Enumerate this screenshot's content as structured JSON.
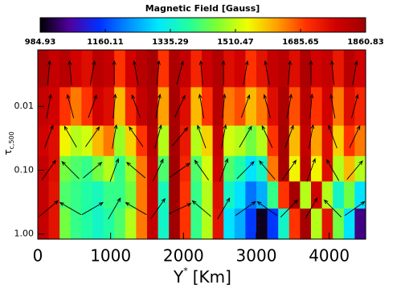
{
  "chart_data": {
    "type": "heatmap",
    "colorbar_title": "Magnetic Field [Gauss]",
    "zlim": [
      984.93,
      1860.83
    ],
    "zticks": [
      984.93,
      1160.11,
      1335.29,
      1510.47,
      1685.65,
      1860.83
    ],
    "colormap": [
      "#000000",
      "#5000a0",
      "#0030ff",
      "#0090ff",
      "#00e8ff",
      "#20ffa0",
      "#80ff30",
      "#f0ff00",
      "#ffa000",
      "#ff3000",
      "#d00000",
      "#a00000"
    ],
    "xlabel": {
      "base": "Y",
      "sup": "*",
      "unit": "[Km]"
    },
    "ylabel": {
      "symbol": "τ",
      "sub": "c,500"
    },
    "xlim": [
      0,
      4500
    ],
    "xticks": [
      0,
      1000,
      2000,
      3000,
      4000
    ],
    "ylog": true,
    "ylim": [
      1.2,
      0.0013
    ],
    "yticks": [
      0.01,
      {
        "value": 0.1,
        "label": "0.10"
      },
      {
        "value": 1,
        "label": "1.00"
      }
    ],
    "x_edges": [
      0,
      150,
      300,
      450,
      600,
      750,
      900,
      1050,
      1200,
      1350,
      1500,
      1650,
      1800,
      1950,
      2100,
      2250,
      2400,
      2550,
      2700,
      2850,
      3000,
      3150,
      3300,
      3450,
      3600,
      3750,
      3900,
      4050,
      4200,
      4350,
      4500
    ],
    "y_edges": [
      0.0013,
      0.005,
      0.02,
      0.06,
      0.15,
      0.4,
      1.2
    ],
    "z": [
      [
        1840,
        1800,
        1820,
        1780,
        1760,
        1820,
        1800,
        1700,
        1780,
        1820,
        1850,
        1700,
        1840,
        1800,
        1720,
        1790,
        1830,
        1760,
        1780,
        1700,
        1750,
        1800,
        1820,
        1760,
        1840,
        1780,
        1800,
        1740,
        1820,
        1780
      ],
      [
        1800,
        1780,
        1700,
        1650,
        1700,
        1780,
        1760,
        1600,
        1720,
        1800,
        1840,
        1620,
        1850,
        1760,
        1600,
        1700,
        1820,
        1650,
        1680,
        1600,
        1650,
        1760,
        1840,
        1680,
        1820,
        1700,
        1780,
        1650,
        1760,
        1720
      ],
      [
        1780,
        1760,
        1550,
        1500,
        1520,
        1600,
        1650,
        1480,
        1580,
        1700,
        1820,
        1500,
        1850,
        1740,
        1500,
        1580,
        1800,
        1520,
        1500,
        1450,
        1500,
        1700,
        1850,
        1600,
        1800,
        1620,
        1760,
        1580,
        1700,
        1650
      ],
      [
        1800,
        1760,
        1450,
        1420,
        1400,
        1450,
        1500,
        1400,
        1480,
        1650,
        1800,
        1420,
        1860,
        1720,
        1420,
        1520,
        1780,
        1420,
        1380,
        1300,
        1350,
        1650,
        1850,
        1550,
        1820,
        1550,
        1760,
        1500,
        1600,
        1500
      ],
      [
        1800,
        1750,
        1420,
        1400,
        1380,
        1360,
        1400,
        1400,
        1450,
        1650,
        1800,
        1360,
        1860,
        1700,
        1400,
        1500,
        1760,
        1350,
        1300,
        1200,
        1250,
        1400,
        1700,
        1850,
        1500,
        1780,
        1500,
        1350,
        1450,
        1300
      ],
      [
        1800,
        1750,
        1450,
        1400,
        1380,
        1350,
        1380,
        1420,
        1500,
        1650,
        1800,
        1350,
        1860,
        1700,
        1400,
        1500,
        1750,
        1300,
        1250,
        1150,
        1000,
        1150,
        1350,
        1700,
        1850,
        1500,
        1750,
        1450,
        1300,
        1050
      ]
    ],
    "vectors": {
      "x": [
        150,
        450,
        750,
        1050,
        1350,
        1650,
        1950,
        2250,
        2550,
        2850,
        3150,
        3450,
        3750,
        4050,
        4350
      ],
      "y": [
        0.003,
        0.01,
        0.03,
        0.1,
        0.4
      ],
      "angle": [
        [
          5,
          -5,
          10,
          0,
          -10,
          5,
          15,
          -5,
          0,
          10,
          -10,
          5,
          0,
          -5,
          10
        ],
        [
          10,
          -15,
          20,
          5,
          -20,
          10,
          25,
          -10,
          5,
          20,
          -15,
          10,
          5,
          -10,
          15
        ],
        [
          20,
          -30,
          35,
          10,
          -35,
          15,
          40,
          -20,
          10,
          30,
          -25,
          20,
          10,
          -20,
          25
        ],
        [
          35,
          -45,
          50,
          20,
          -50,
          25,
          55,
          -35,
          20,
          45,
          -40,
          35,
          20,
          -30,
          40
        ],
        [
          50,
          -60,
          60,
          30,
          -60,
          35,
          65,
          -50,
          30,
          55,
          -55,
          45,
          30,
          -45,
          55
        ]
      ]
    }
  }
}
